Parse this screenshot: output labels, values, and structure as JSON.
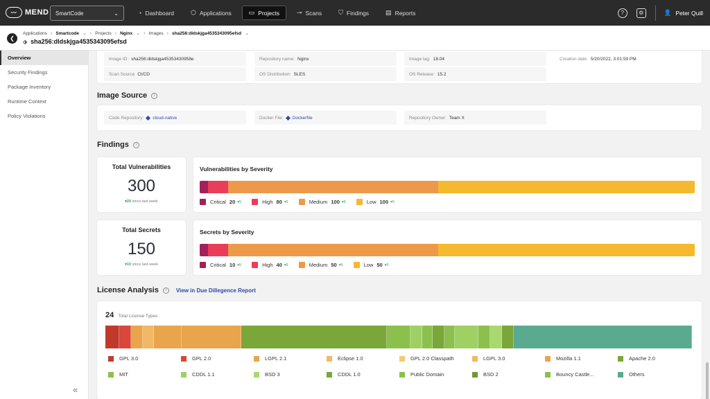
{
  "topbar": {
    "logo_text": "MEND",
    "org_select": "SmartCode",
    "nav": [
      {
        "label": "Dashboard",
        "icon": "dashboard-icon",
        "glyph": "◔"
      },
      {
        "label": "Applications",
        "icon": "cube-icon",
        "glyph": "⬡"
      },
      {
        "label": "Projects",
        "icon": "folder-icon",
        "glyph": "▭"
      },
      {
        "label": "Scans",
        "icon": "scan-icon",
        "glyph": "⊸"
      },
      {
        "label": "Findings",
        "icon": "shield-icon",
        "glyph": "⛉"
      },
      {
        "label": "Reports",
        "icon": "report-icon",
        "glyph": "▤"
      }
    ],
    "active_nav": "Projects",
    "user_name": "Peter Quill"
  },
  "header": {
    "breadcrumbs": [
      {
        "label": "Applications",
        "bold": false,
        "dropdown": false
      },
      {
        "label": "Smartcode",
        "bold": true,
        "dropdown": true
      },
      {
        "label": "Projects",
        "bold": false,
        "dropdown": false
      },
      {
        "label": "Nginx",
        "bold": true,
        "dropdown": true
      },
      {
        "label": "Images",
        "bold": false,
        "dropdown": false
      },
      {
        "label": "sha256:dldskjga4535343095efsd",
        "bold": true,
        "dropdown": true
      }
    ],
    "image_title": "sha256:dldskjga4535343095efsd"
  },
  "sidebar": {
    "items": [
      {
        "label": "Overview",
        "active": true
      },
      {
        "label": "Security Findings",
        "active": false
      },
      {
        "label": "Package Inventory",
        "active": false
      },
      {
        "label": "Runtime Context",
        "active": false
      },
      {
        "label": "Policy Violations",
        "active": false
      }
    ]
  },
  "image_details": {
    "image_id_label": "Image ID:",
    "image_id": "sha256:dldskjga45353430958e",
    "repo_name_label": "Repository name:",
    "repo_name": "Nginx",
    "image_tag_label": "Image tag:",
    "image_tag": "18.04",
    "creation_date_label": "Creation date:",
    "creation_date": "5/20/2022, 3:01:59 PM",
    "scan_source_label": "Scan Source",
    "scan_source": "CI/CD",
    "os_dist_label": "OS Distribution:",
    "os_dist": "SLES",
    "os_release_label": "OS Release:",
    "os_release": "15.2"
  },
  "image_source": {
    "title": "Image Source",
    "code_repo_label": "Code Repository:",
    "code_repo": "cloud-native",
    "docker_file_label": "Docker File:",
    "docker_file": "Dockerfile",
    "repo_owner_label": "Repository Owner:",
    "repo_owner": "Team X"
  },
  "findings": {
    "title": "Findings",
    "total_vuln_title": "Total Vulnerabilities",
    "total_vuln": "300",
    "total_vuln_delta": "20",
    "total_vuln_delta_text": "since last week",
    "vuln_sev_title": "Vulnerabilities by Severity",
    "vuln_severity": [
      {
        "label": "Critical",
        "count": "20",
        "delta": "5",
        "value": 20,
        "color": "#a3215a"
      },
      {
        "label": "High",
        "count": "80",
        "delta": "5",
        "value": 50,
        "color": "#ea3d5a"
      },
      {
        "label": "Medium",
        "count": "100",
        "delta": "5",
        "value": 520,
        "color": "#ec9a4a"
      },
      {
        "label": "Low",
        "count": "100",
        "delta": "5",
        "value": 635,
        "color": "#f5b92e"
      }
    ],
    "total_secrets_title": "Total Secrets",
    "total_secrets": "150",
    "total_secrets_delta": "10",
    "total_secrets_delta_text": "since last week",
    "secrets_sev_title": "Secrets by Severity",
    "secrets_severity": [
      {
        "label": "Critical",
        "count": "10",
        "delta": "5",
        "value": 20,
        "color": "#a3215a"
      },
      {
        "label": "High",
        "count": "40",
        "delta": "5",
        "value": 50,
        "color": "#ea3d5a"
      },
      {
        "label": "Medium",
        "count": "50",
        "delta": "5",
        "value": 520,
        "color": "#ec9a4a"
      },
      {
        "label": "Low",
        "count": "50",
        "delta": "5",
        "value": 635,
        "color": "#f5b92e"
      }
    ]
  },
  "license": {
    "title": "License Analysis",
    "link": "View in Due Dillegence Report",
    "count": "24",
    "count_label": "Total License Types",
    "bar": [
      {
        "color": "#c0392b",
        "value": 20
      },
      {
        "color": "#d9463a",
        "value": 17
      },
      {
        "color": "#eaa44c",
        "value": 17
      },
      {
        "color": "#f1b866",
        "value": 16
      },
      {
        "color": "#eaa44c",
        "value": 40
      },
      {
        "color": "#eaa44c",
        "value": 86
      },
      {
        "color": "#7aa63a",
        "value": 210
      },
      {
        "color": "#8cc04e",
        "value": 34
      },
      {
        "color": "#9fd064",
        "value": 17
      },
      {
        "color": "#8cc04e",
        "value": 15
      },
      {
        "color": "#7aa63a",
        "value": 17
      },
      {
        "color": "#8cc04e",
        "value": 15
      },
      {
        "color": "#9fd064",
        "value": 34
      },
      {
        "color": "#8cc04e",
        "value": 17
      },
      {
        "color": "#a9d86e",
        "value": 17
      },
      {
        "color": "#7aa63a",
        "value": 17
      },
      {
        "color": "#5aaa90",
        "value": 257
      }
    ],
    "legend": [
      {
        "label": "GPL 3.0",
        "color": "#c0392b"
      },
      {
        "label": "GPL 2.0",
        "color": "#d9463a"
      },
      {
        "label": "LGPL 2.1",
        "color": "#eaa44c"
      },
      {
        "label": "Eclipse 1.0",
        "color": "#f1b866"
      },
      {
        "label": "GPL 2.0 Classpath",
        "color": "#f5c978"
      },
      {
        "label": "LGPL 3.0",
        "color": "#f1b866"
      },
      {
        "label": "Mozilla 1.1",
        "color": "#eaa44c"
      },
      {
        "label": "Apache 2.0",
        "color": "#7aa63a"
      },
      {
        "label": "MIT",
        "color": "#8cc04e"
      },
      {
        "label": "CDDL 1.1",
        "color": "#9fd064"
      },
      {
        "label": "BSD 3",
        "color": "#a9d86e"
      },
      {
        "label": "CDDL 1.0",
        "color": "#7aa63a"
      },
      {
        "label": "Public Domain",
        "color": "#8cc04e"
      },
      {
        "label": "BSD 2",
        "color": "#6e9a34"
      },
      {
        "label": "Bouncy Castle...",
        "color": "#8cc04e"
      },
      {
        "label": "Others",
        "color": "#5aaa90"
      }
    ]
  }
}
